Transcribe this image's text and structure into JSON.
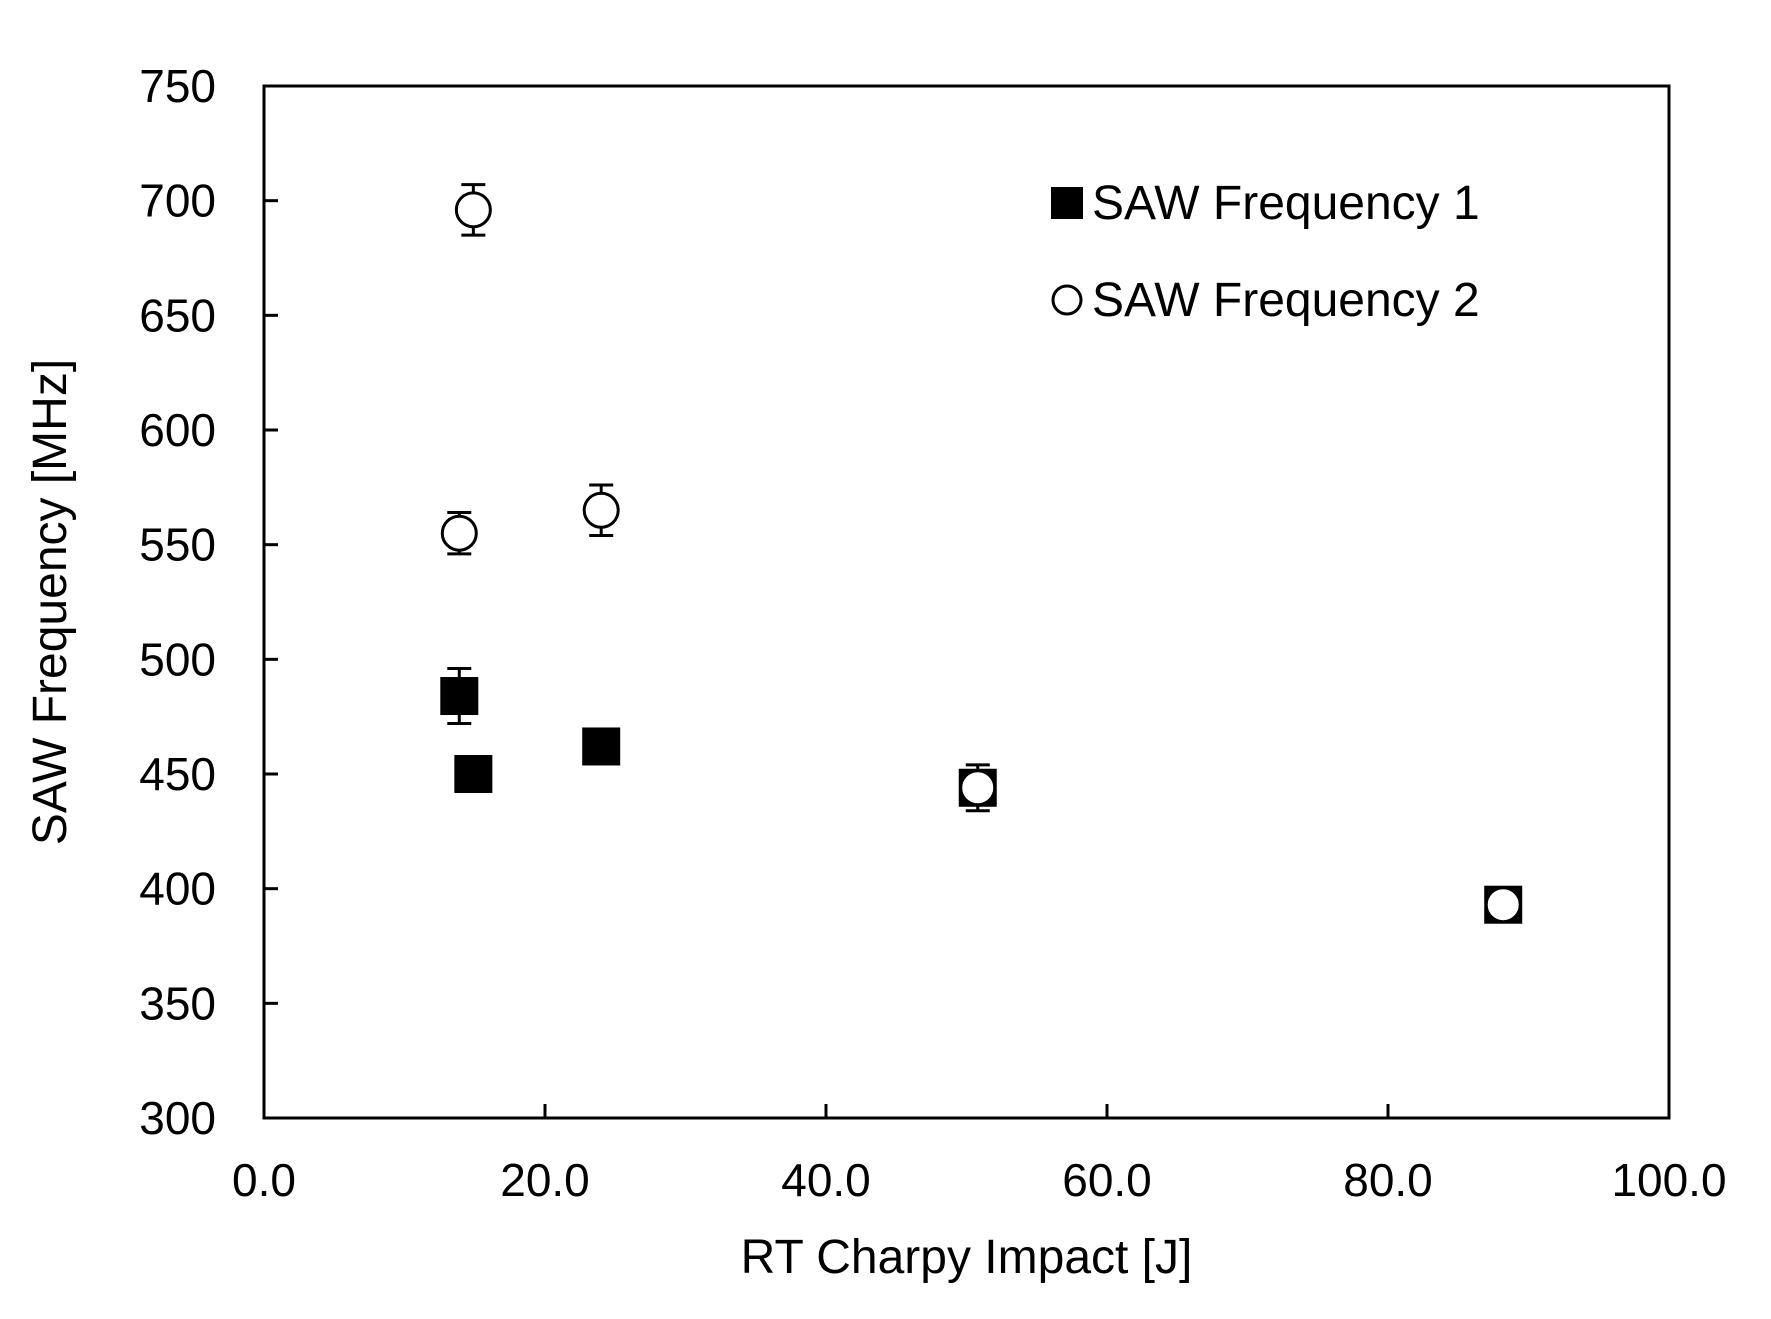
{
  "chart_data": {
    "type": "scatter",
    "title": "",
    "xlabel": "RT Charpy Impact [J]",
    "ylabel": "SAW Frequency [MHz]",
    "xlim": [
      0,
      100
    ],
    "ylim": [
      300,
      750
    ],
    "x_ticks": [
      0,
      20,
      40,
      60,
      80,
      100
    ],
    "x_tick_labels": [
      "0.0",
      "20.0",
      "40.0",
      "60.0",
      "80.0",
      "100.0"
    ],
    "y_ticks": [
      300,
      350,
      400,
      450,
      500,
      550,
      600,
      650,
      700,
      750
    ],
    "y_tick_labels": [
      "300",
      "350",
      "400",
      "450",
      "500",
      "550",
      "600",
      "650",
      "700",
      "750"
    ],
    "grid": false,
    "legend_position": "top-right",
    "series": [
      {
        "name": "SAW Frequency 1",
        "marker": "filled-square",
        "color": "#000000",
        "points": [
          {
            "x": 13.9,
            "y": 484,
            "err": 12
          },
          {
            "x": 14.9,
            "y": 450,
            "err": 0
          },
          {
            "x": 24.0,
            "y": 462,
            "err": 0
          },
          {
            "x": 50.8,
            "y": 444,
            "err": 0
          },
          {
            "x": 88.2,
            "y": 393,
            "err": 0
          }
        ]
      },
      {
        "name": "SAW Frequency 2",
        "marker": "open-circle",
        "color": "#000000",
        "points": [
          {
            "x": 14.9,
            "y": 696,
            "err": 11
          },
          {
            "x": 13.9,
            "y": 555,
            "err": 9
          },
          {
            "x": 24.0,
            "y": 565,
            "err": 11
          },
          {
            "x": 50.8,
            "y": 444,
            "err": 10
          },
          {
            "x": 88.2,
            "y": 393,
            "err": 0
          }
        ]
      }
    ]
  }
}
